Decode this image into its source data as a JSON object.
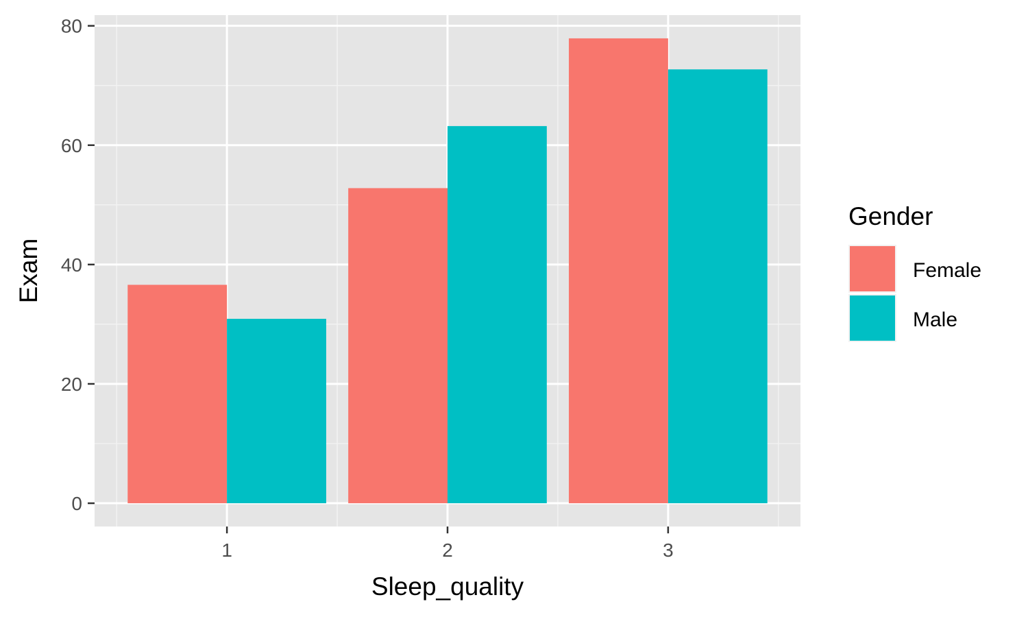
{
  "chart_data": {
    "type": "bar",
    "title": "",
    "xlabel": "Sleep_quality",
    "ylabel": "Exam",
    "categories": [
      "1",
      "2",
      "3"
    ],
    "series": [
      {
        "name": "Female",
        "color": "#F8766D",
        "values": [
          36.6,
          52.8,
          77.9
        ]
      },
      {
        "name": "Male",
        "color": "#00BFC4",
        "values": [
          30.9,
          63.2,
          72.7
        ]
      }
    ],
    "yticks": [
      0,
      20,
      40,
      60,
      80
    ],
    "ytick_labels": [
      "0",
      "20",
      "40",
      "60",
      "80"
    ],
    "ylim": [
      -3.9,
      81.8
    ],
    "grid": true,
    "legend": {
      "title": "Gender",
      "position": "right"
    }
  }
}
